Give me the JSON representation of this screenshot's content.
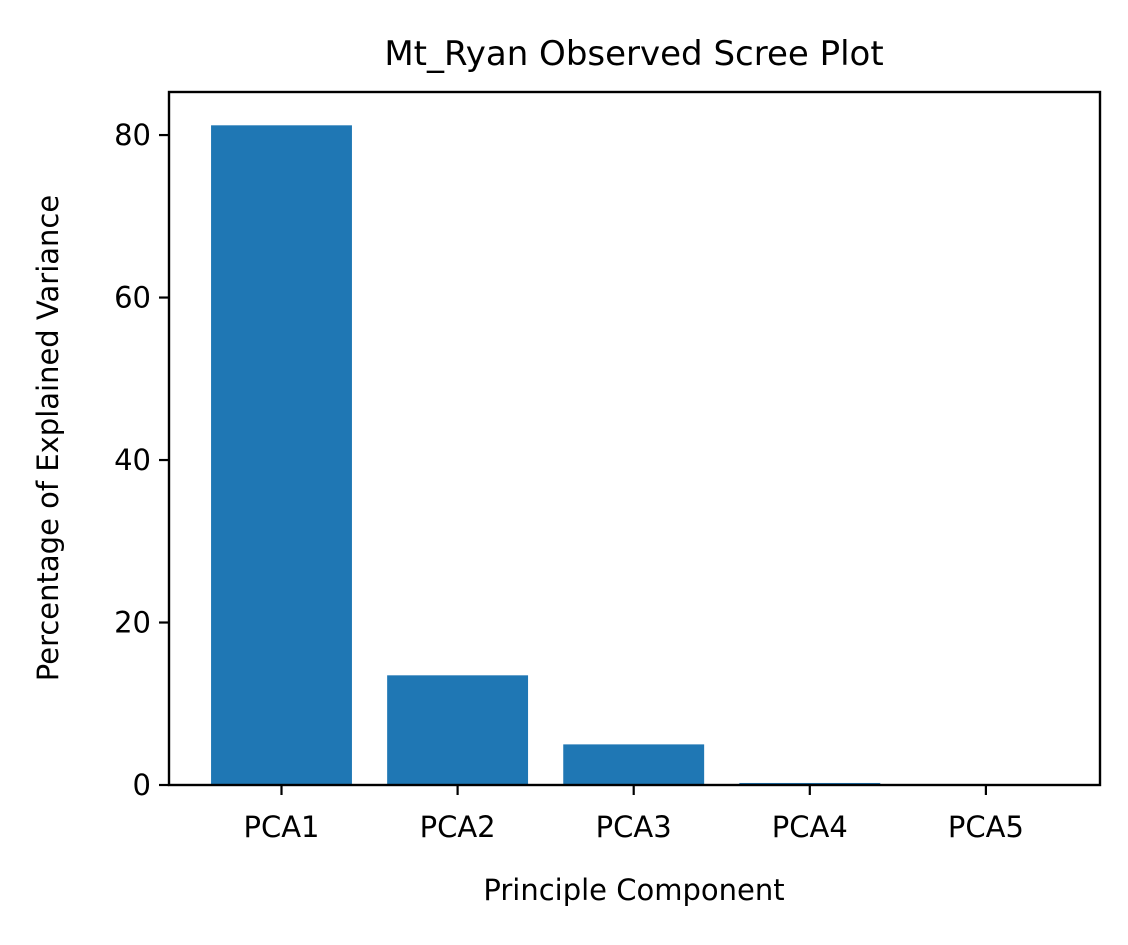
{
  "chart_data": {
    "type": "bar",
    "title": "Mt_Ryan Observed Scree Plot",
    "xlabel": "Principle Component",
    "ylabel": "Percentage of Explained Variance",
    "categories": [
      "PCA1",
      "PCA2",
      "PCA3",
      "PCA4",
      "PCA5"
    ],
    "values": [
      81.2,
      13.5,
      5.0,
      0.25,
      0.05
    ],
    "ylim": [
      0,
      85.3
    ],
    "yticks": [
      0,
      20,
      40,
      60,
      80
    ],
    "grid": false,
    "bar_color": "#1f77b4"
  }
}
